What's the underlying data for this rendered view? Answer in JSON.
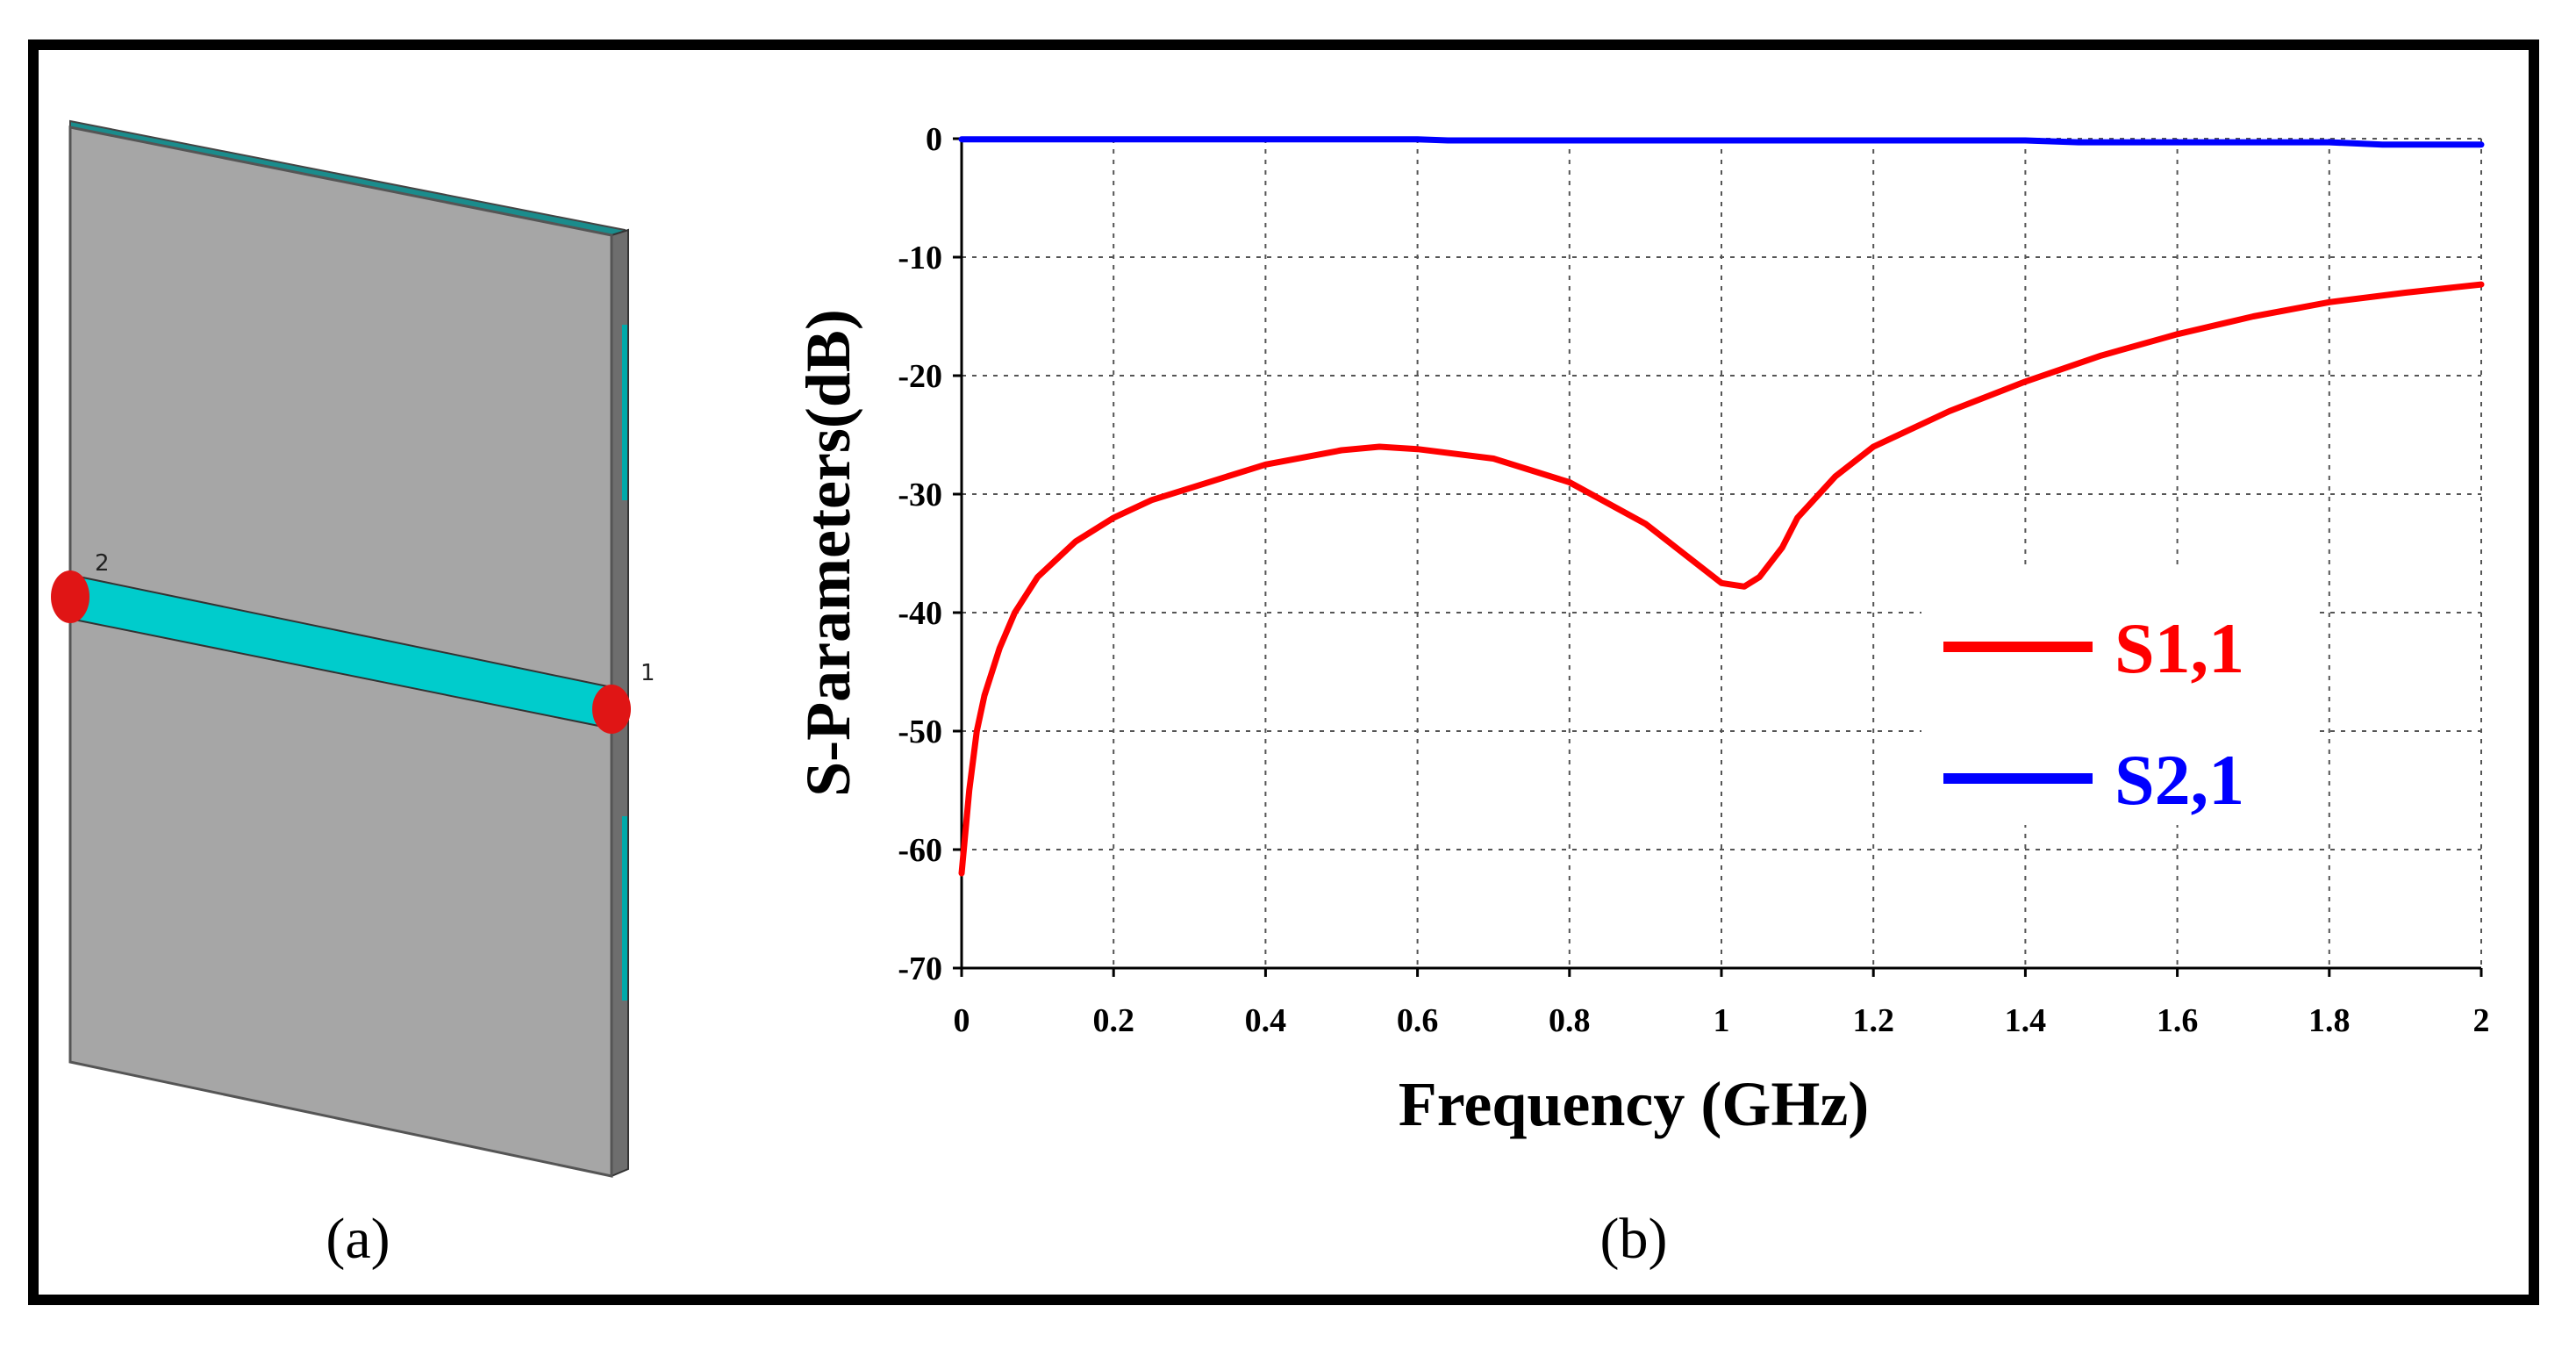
{
  "figure": {
    "panel_a_caption": "(a)",
    "panel_b_caption": "(b)",
    "port_1_label": "1",
    "port_2_label": "2",
    "colors": {
      "plate": "#a6a6a6",
      "plate_edge": "#555555",
      "strip": "#00cccc",
      "port": "#e01515"
    }
  },
  "chart_data": {
    "type": "line",
    "xlabel": "Frequency (GHz)",
    "ylabel": "S-Parameters(dB)",
    "xlim": [
      0,
      2
    ],
    "ylim": [
      -70,
      0
    ],
    "xticks": [
      0,
      0.2,
      0.4,
      0.6,
      0.8,
      1,
      1.2,
      1.4,
      1.6,
      1.8,
      2
    ],
    "xtick_labels": [
      "0",
      "0.2",
      "0.4",
      "0.6",
      "0.8",
      "1",
      "1.2",
      "1.4",
      "1.6",
      "1.8",
      "2"
    ],
    "yticks": [
      0,
      -10,
      -20,
      -30,
      -40,
      -50,
      -60,
      -70
    ],
    "ytick_labels": [
      "0",
      "-10",
      "-20",
      "-30",
      "-40",
      "-50",
      "-60",
      "-70"
    ],
    "grid": true,
    "legend_position": "center-right",
    "series": [
      {
        "name": "S1,1",
        "color": "#ff0000",
        "x": [
          0.0,
          0.01,
          0.02,
          0.03,
          0.05,
          0.07,
          0.1,
          0.15,
          0.2,
          0.25,
          0.3,
          0.4,
          0.5,
          0.55,
          0.6,
          0.7,
          0.8,
          0.9,
          0.95,
          1.0,
          1.03,
          1.05,
          1.08,
          1.1,
          1.15,
          1.2,
          1.3,
          1.4,
          1.5,
          1.6,
          1.7,
          1.8,
          1.9,
          2.0
        ],
        "values": [
          -62,
          -55,
          -50,
          -47,
          -43,
          -40,
          -37,
          -34,
          -32,
          -30.5,
          -29.5,
          -27.5,
          -26.3,
          -26,
          -26.2,
          -27,
          -29,
          -32.5,
          -35,
          -37.5,
          -37.8,
          -37,
          -34.5,
          -32,
          -28.5,
          -26,
          -23,
          -20.5,
          -18.3,
          -16.5,
          -15,
          -13.8,
          -13,
          -12.3
        ]
      },
      {
        "name": "S2,1",
        "color": "#0000ff",
        "x": [
          0.0,
          0.2,
          0.4,
          0.6,
          0.64,
          0.8,
          1.0,
          1.2,
          1.4,
          1.47,
          1.6,
          1.8,
          1.87,
          2.0
        ],
        "values": [
          -0.05,
          -0.05,
          -0.05,
          -0.05,
          -0.15,
          -0.15,
          -0.15,
          -0.15,
          -0.15,
          -0.3,
          -0.3,
          -0.3,
          -0.5,
          -0.5
        ]
      }
    ]
  }
}
